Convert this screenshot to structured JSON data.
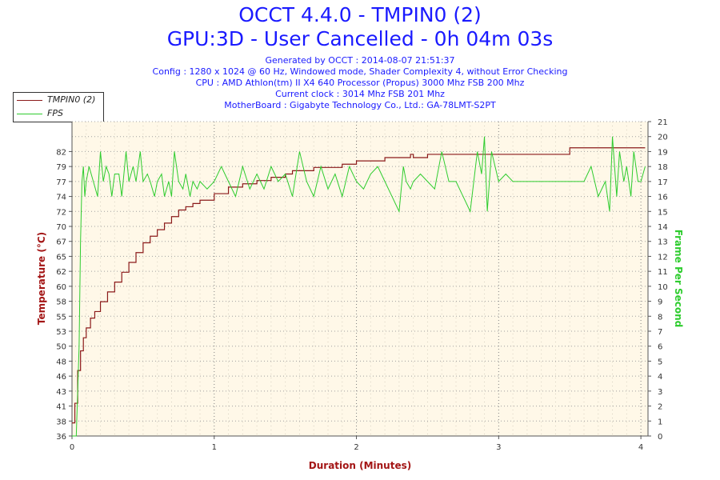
{
  "header": {
    "title_line1": "OCCT 4.4.0 - TMPIN0 (2)",
    "title_line2": "GPU:3D - User Cancelled - 0h 04m 03s",
    "info_lines": [
      "Generated by OCCT : 2014-08-07 21:51:37",
      "Config : 1280 x 1024 @ 60 Hz, Windowed mode, Shader Complexity 4, without Error Checking",
      "CPU : AMD Athlon(tm) II X4 640 Processor (Propus) 3000 Mhz FSB 200 Mhz",
      "Current clock : 3014 Mhz FSB 201 Mhz",
      "MotherBoard : Gigabyte Technology Co., Ltd.: GA-78LMT-S2PT"
    ]
  },
  "legend": {
    "items": [
      {
        "label": "TMPIN0 (2)",
        "color": "#8b1a1a"
      },
      {
        "label": "FPS",
        "color": "#2ecc2e"
      }
    ]
  },
  "chart_data": {
    "type": "line",
    "title": "OCCT 4.4.0 - TMPIN0 (2)",
    "xlabel": "Duration (Minutes)",
    "ylabel": "Temperature (°C)",
    "y2label": "Frame Per Second",
    "xlim": [
      0,
      4.05
    ],
    "ylim": [
      36,
      84
    ],
    "y2lim": [
      0,
      21
    ],
    "x_ticks": [
      "0",
      "1",
      "2",
      "3",
      "4"
    ],
    "y_ticks": [
      36,
      38,
      41,
      43,
      46,
      48,
      50,
      53,
      55,
      58,
      60,
      62,
      65,
      67,
      70,
      72,
      74,
      77,
      79,
      82
    ],
    "y2_ticks": [
      0,
      1,
      2,
      3,
      4,
      5,
      6,
      7,
      8,
      9,
      10,
      11,
      12,
      13,
      14,
      15,
      16,
      17,
      18,
      19,
      20,
      21
    ],
    "grid": true,
    "legend_position": "top-left",
    "colors": {
      "temperature": "#8b1a1a",
      "fps": "#2ecc2e",
      "axis_left": "#a31515",
      "axis_right": "#2ecc2e",
      "background": "#fff8e8"
    },
    "series": [
      {
        "name": "TMPIN0 (2)",
        "axis": "left",
        "x": [
          0,
          0.02,
          0.04,
          0.06,
          0.08,
          0.1,
          0.13,
          0.16,
          0.2,
          0.25,
          0.3,
          0.35,
          0.4,
          0.45,
          0.5,
          0.55,
          0.6,
          0.65,
          0.7,
          0.75,
          0.8,
          0.85,
          0.9,
          1.0,
          1.1,
          1.2,
          1.3,
          1.4,
          1.5,
          1.55,
          1.7,
          1.8,
          1.9,
          2.0,
          2.2,
          2.35,
          2.38,
          2.4,
          2.5,
          2.6,
          2.8,
          3.0,
          3.2,
          3.44,
          3.5,
          3.6,
          3.7,
          3.8,
          3.9,
          4.0,
          4.03
        ],
        "values": [
          38,
          41,
          46,
          49,
          51,
          52.5,
          54,
          55,
          56.5,
          58,
          59.5,
          61,
          62.5,
          64,
          65.5,
          66.5,
          67.5,
          68.5,
          69.5,
          70.5,
          71,
          71.5,
          72,
          73,
          74,
          74.5,
          75,
          75.5,
          76,
          76.5,
          77,
          77,
          77.5,
          78,
          78.5,
          78.5,
          79,
          78.5,
          79,
          79,
          79,
          79,
          79,
          79,
          80,
          80,
          80,
          80,
          80,
          80,
          80
        ]
      },
      {
        "name": "FPS",
        "axis": "right",
        "x": [
          0,
          0.03,
          0.05,
          0.06,
          0.07,
          0.08,
          0.09,
          0.1,
          0.12,
          0.15,
          0.18,
          0.2,
          0.22,
          0.24,
          0.26,
          0.28,
          0.3,
          0.33,
          0.35,
          0.38,
          0.4,
          0.43,
          0.45,
          0.48,
          0.5,
          0.53,
          0.55,
          0.58,
          0.6,
          0.63,
          0.65,
          0.68,
          0.7,
          0.72,
          0.75,
          0.78,
          0.8,
          0.83,
          0.85,
          0.88,
          0.9,
          0.95,
          1.0,
          1.05,
          1.1,
          1.15,
          1.2,
          1.25,
          1.3,
          1.35,
          1.4,
          1.45,
          1.5,
          1.55,
          1.6,
          1.65,
          1.7,
          1.75,
          1.8,
          1.85,
          1.9,
          1.95,
          2.0,
          2.05,
          2.1,
          2.15,
          2.2,
          2.25,
          2.3,
          2.33,
          2.35,
          2.38,
          2.4,
          2.45,
          2.5,
          2.55,
          2.6,
          2.65,
          2.7,
          2.75,
          2.8,
          2.85,
          2.88,
          2.9,
          2.92,
          2.95,
          3.0,
          3.05,
          3.1,
          3.2,
          3.3,
          3.4,
          3.5,
          3.6,
          3.65,
          3.7,
          3.75,
          3.78,
          3.8,
          3.83,
          3.85,
          3.88,
          3.9,
          3.93,
          3.95,
          3.98,
          4.0,
          4.03
        ],
        "values": [
          0,
          0,
          6,
          13,
          17,
          18,
          16,
          17,
          18,
          17,
          16,
          19,
          17,
          18,
          17.5,
          16,
          17.5,
          17.5,
          16,
          19,
          17,
          18,
          17,
          19,
          17,
          17.5,
          17,
          16,
          17,
          17.5,
          16,
          17,
          16,
          19,
          17,
          16.5,
          17.5,
          16,
          17,
          16.5,
          17,
          16.5,
          17,
          18,
          17,
          16,
          18,
          16.5,
          17.5,
          16.5,
          18,
          17,
          17.5,
          16,
          19,
          17,
          16,
          18,
          16.5,
          17.5,
          16,
          18,
          17,
          16.5,
          17.5,
          18,
          17,
          16,
          15,
          18,
          17,
          16.5,
          17,
          17.5,
          17,
          16.5,
          19,
          17,
          17,
          16,
          15,
          19,
          17.5,
          20,
          15,
          19,
          17,
          17.5,
          17,
          17,
          17,
          17,
          17,
          17,
          18,
          16,
          17,
          15,
          20,
          16,
          19,
          17,
          18,
          16,
          19,
          17,
          17,
          18
        ]
      }
    ]
  }
}
